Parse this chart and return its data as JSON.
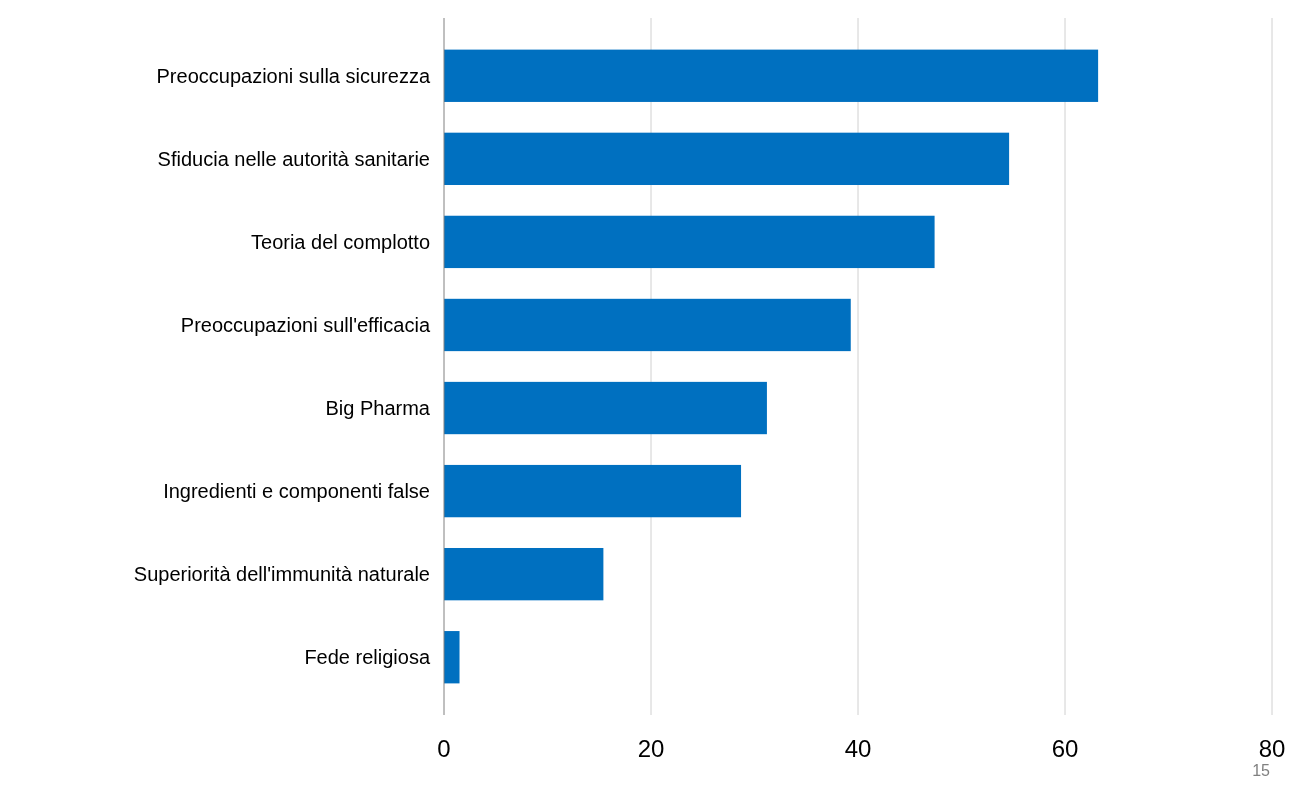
{
  "chart_data": {
    "type": "bar",
    "orientation": "horizontal",
    "categories": [
      "Preoccupazioni sulla sicurezza",
      "Sfiducia nelle autorità sanitarie",
      "Teoria del complotto",
      "Preoccupazioni sull'efficacia",
      "Big Pharma",
      "Ingredienti e componenti false",
      "Superiorità dell'immunità naturale",
      "Fede religiosa"
    ],
    "values": [
      63.2,
      54.6,
      47.4,
      39.3,
      31.2,
      28.7,
      15.4,
      1.5
    ],
    "color": "#0070c0",
    "xlim": [
      0,
      80
    ],
    "xticks": [
      0,
      20,
      40,
      60,
      80
    ],
    "grid": "x",
    "annotations": [
      "15"
    ]
  }
}
